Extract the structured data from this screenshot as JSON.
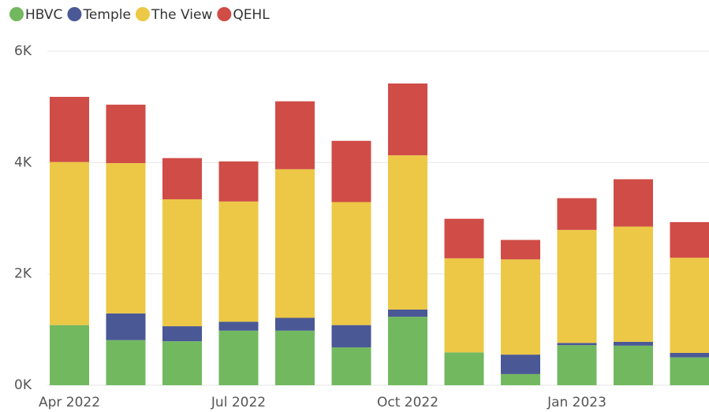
{
  "chart_data": {
    "type": "stacked_bar",
    "categories": [
      "Apr 2022",
      null,
      null,
      "Jul 2022",
      null,
      null,
      "Oct 2022",
      null,
      null,
      "Jan 2023",
      null,
      null
    ],
    "series": [
      {
        "name": "HBVC",
        "color": "#72b85f",
        "values": [
          1080,
          810,
          790,
          980,
          980,
          680,
          1230,
          590,
          200,
          720,
          710,
          500
        ]
      },
      {
        "name": "Temple",
        "color": "#4a5895",
        "values": [
          0,
          480,
          270,
          160,
          230,
          400,
          130,
          0,
          350,
          40,
          70,
          80
        ]
      },
      {
        "name": "The View",
        "color": "#ecc846",
        "values": [
          2930,
          2700,
          2280,
          2160,
          2670,
          2210,
          2770,
          1690,
          1710,
          2030,
          2070,
          1710
        ]
      },
      {
        "name": "QEHL",
        "color": "#d04c47",
        "values": [
          1170,
          1050,
          740,
          720,
          1220,
          1100,
          1290,
          710,
          350,
          570,
          850,
          640
        ]
      }
    ],
    "ylim": [
      0,
      6000
    ],
    "yticks": [
      {
        "value": 0,
        "label": "0K"
      },
      {
        "value": 2000,
        "label": "2K"
      },
      {
        "value": 4000,
        "label": "4K"
      },
      {
        "value": 6000,
        "label": "6K"
      }
    ],
    "grid": true,
    "legend": "top-left"
  }
}
